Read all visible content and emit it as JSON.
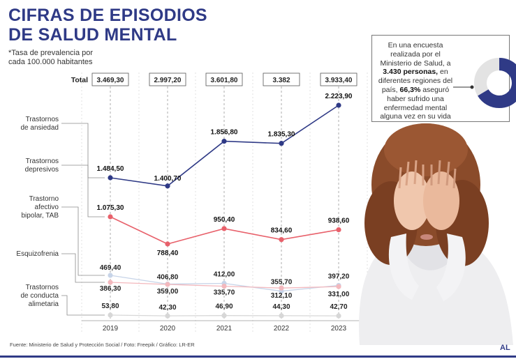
{
  "title_lines": [
    "CIFRAS DE EPISODIOS",
    "DE SALUD MENTAL"
  ],
  "note": "*Tasa de prevalencia por cada 100.000 habitantes",
  "colors": {
    "navy": "#2f3a86",
    "red": "#e8616b",
    "lightblue": "#c7d4e8",
    "pink": "#f3b8bd",
    "gray": "#d7d7d7"
  },
  "callout": {
    "text_before": "En una encuesta realizada por el Ministerio de Salud, a ",
    "bold1": "3.430 personas,",
    "text_mid": " en diferentes regiones del país, ",
    "bold2": "66,3%",
    "text_after": " aseguró haber sufrido una enfermedad mental alguna vez en su vida",
    "percent": 66.3
  },
  "source": "Fuente: Ministerio de Salud y Protección Social / Foto: Freepik / Gráfico: LR-ER",
  "logo": "AL",
  "chart_data": {
    "type": "line",
    "x": [
      "2019",
      "2020",
      "2021",
      "2022",
      "2023"
    ],
    "total_label": "Total",
    "totals": [
      "3.469,30",
      "2.997,20",
      "3.601,80",
      "3.382",
      "3.933,40"
    ],
    "series": [
      {
        "name": "Trastornos de ansiedad",
        "values": [
          1484.5,
          1400.7,
          1856.8,
          1835.3,
          2223.9
        ],
        "labels": [
          "1.484,50",
          "1.400,70",
          "1.856,80",
          "1.835,30",
          "2.223,90"
        ]
      },
      {
        "name": "Trastornos depresivos",
        "values": [
          1075.3,
          788.4,
          950.4,
          834.6,
          938.6
        ],
        "labels": [
          "1.075,30",
          "788,40",
          "950,40",
          "834,60",
          "938,60"
        ]
      },
      {
        "name": "Trastorno afectivo bipolar, TAB",
        "values": [
          469.4,
          406.8,
          412.0,
          355.7,
          397.2
        ],
        "labels": [
          "469,40",
          "406,80",
          "412,00",
          "355,70",
          "397,20"
        ]
      },
      {
        "name": "Esquizofrenia",
        "values": [
          386.3,
          359.0,
          335.7,
          312.1,
          331.0
        ],
        "labels": [
          "386,30",
          "359,00",
          "335,70",
          "312,10",
          "331,00"
        ]
      },
      {
        "name": "Trastornos de conducta alimetaria",
        "values": [
          53.8,
          42.3,
          46.9,
          44.3,
          42.7
        ],
        "labels": [
          "53,80",
          "42,30",
          "46,90",
          "44,30",
          "42,70"
        ]
      }
    ],
    "category_labels": [
      [
        "Trastornos",
        "de ansiedad"
      ],
      [
        "Trastornos",
        "depresivos"
      ],
      [
        "Trastorno",
        "afectivo",
        "bipolar, TAB"
      ],
      [
        "Esquizofrenia"
      ],
      [
        "Trastornos",
        "de conducta",
        "alimetaria"
      ]
    ]
  }
}
